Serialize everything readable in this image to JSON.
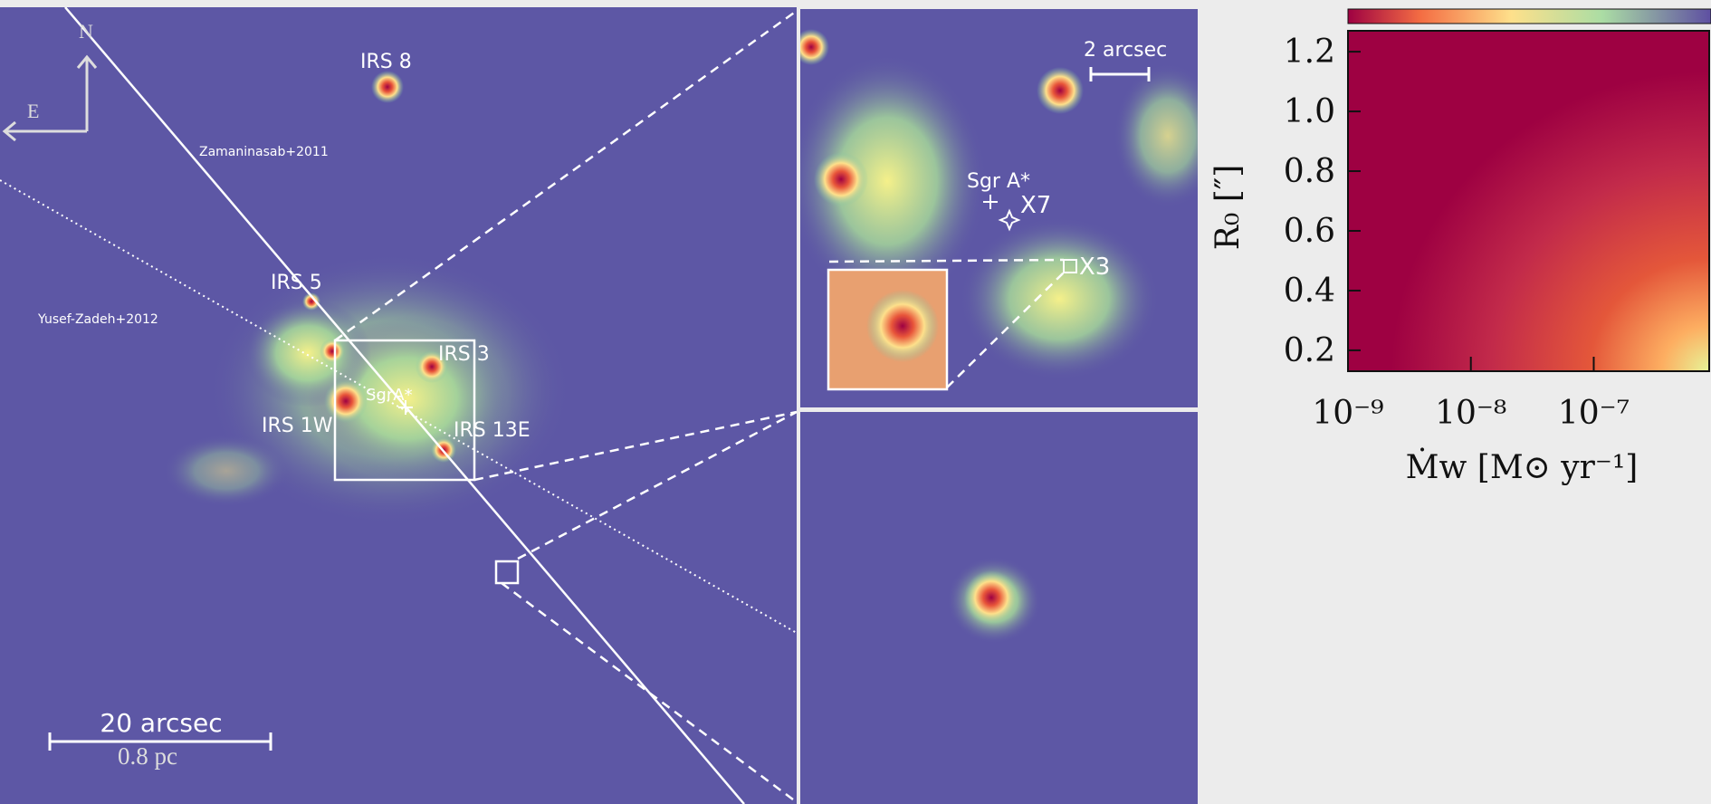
{
  "left_panel": {
    "labels": {
      "irs8": "IRS 8",
      "zamaninasab": "Zamaninasab+2011",
      "yusef": "Yusef-Zadeh+2012",
      "irs5": "IRS 5",
      "irs3": "IRS 3",
      "sgra": "SgrA*",
      "irs1w": "IRS 1W",
      "irs13e": "IRS 13E",
      "north": "N",
      "east": "E",
      "scale_arcsec": "20 arcsec",
      "scale_pc": "0.8 pc"
    }
  },
  "top_inset": {
    "labels": {
      "scale": "2 arcsec",
      "sgra": "Sgr A*",
      "x7": "X7",
      "x3": "X3"
    }
  },
  "chart_data": {
    "type": "heatmap",
    "xlabel": "Ṁw  [M⊙ yr⁻¹]",
    "ylabel": "R₀ [″]",
    "xscale": "log",
    "xlim": [
      1e-09,
      8.7e-07
    ],
    "ylim": [
      0.13,
      1.27
    ],
    "xticks": [
      {
        "value": 1e-09,
        "label": "10⁻⁹"
      },
      {
        "value": 1e-08,
        "label": "10⁻⁸"
      },
      {
        "value": 1e-07,
        "label": "10⁻⁷"
      }
    ],
    "yticks": [
      {
        "value": 0.2,
        "label": "0.2"
      },
      {
        "value": 0.4,
        "label": "0.4"
      },
      {
        "value": 0.6,
        "label": "0.6"
      },
      {
        "value": 0.8,
        "label": "0.8"
      },
      {
        "value": 1.0,
        "label": "1.0"
      },
      {
        "value": 1.2,
        "label": "1.2"
      }
    ]
  }
}
